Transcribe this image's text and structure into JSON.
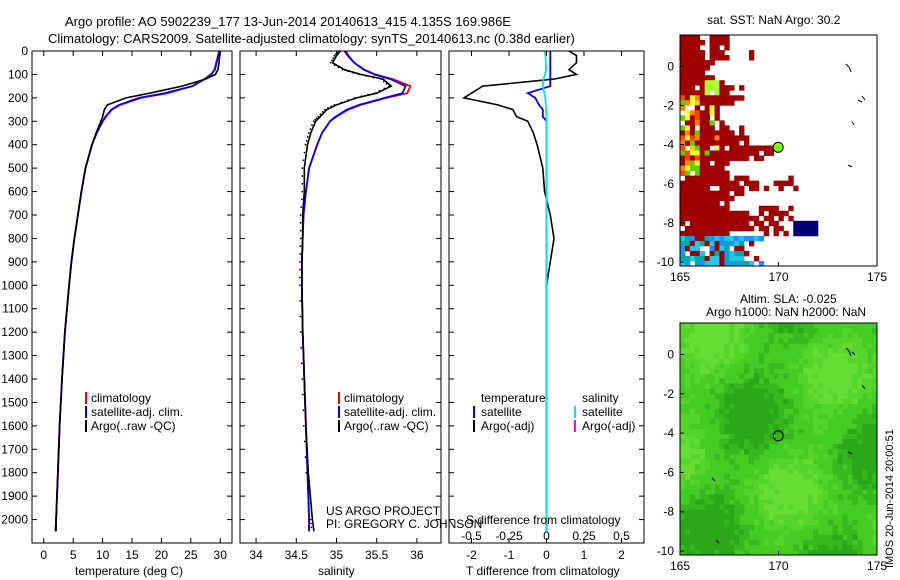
{
  "header": {
    "line1": "Argo profile: AO 5902239_177 13-Jun-2014 20140613_415 4.135S 169.986E",
    "line2": "Climatology: CARS2009. Satellite-adjusted climatology: synTS_20140613.nc (0.38d earlier)"
  },
  "credits": {
    "line1": "US ARGO PROJECT",
    "line2": "PI: GREGORY C. JOHNSON"
  },
  "stamp": "IMOS 20-Jun-2014 20:00:51",
  "colors": {
    "climatology": "#ff0000",
    "satellite": "#0000ff",
    "argo": "#000000",
    "salinity_sat": "#00e5ee",
    "salinity_argo": "#ff00ff"
  },
  "chart_data": [
    {
      "type": "line",
      "name": "temperature",
      "xlabel": "temperature (deg C)",
      "xlim": [
        -2,
        32
      ],
      "xticks": [
        0,
        5,
        10,
        15,
        20,
        25,
        30
      ],
      "ylim": [
        0,
        2100
      ],
      "yticks": [
        0,
        100,
        200,
        300,
        400,
        500,
        600,
        700,
        800,
        900,
        1000,
        1100,
        1200,
        1300,
        1400,
        1500,
        1600,
        1700,
        1800,
        1900,
        2000
      ],
      "legend": [
        "climatology",
        "satellite-adj. clim.",
        "Argo(..raw -QC)"
      ],
      "depth": [
        0,
        20,
        50,
        80,
        100,
        120,
        150,
        180,
        200,
        230,
        250,
        280,
        300,
        350,
        400,
        500,
        600,
        700,
        800,
        900,
        1000,
        1200,
        1400,
        1600,
        1800,
        2000,
        2050
      ],
      "series": [
        {
          "name": "climatology",
          "color": "#ff0000",
          "values": [
            29.8,
            29.6,
            29.3,
            29.0,
            28.4,
            27.3,
            25.2,
            21.0,
            16.5,
            13.0,
            11.6,
            10.6,
            10.0,
            9.0,
            8.2,
            7.1,
            6.4,
            5.8,
            5.2,
            4.7,
            4.3,
            3.6,
            3.1,
            2.7,
            2.4,
            2.1,
            2.0
          ]
        },
        {
          "name": "satellite-adj. clim.",
          "color": "#0000ff",
          "values": [
            29.9,
            29.7,
            29.4,
            29.1,
            28.5,
            27.4,
            25.3,
            20.5,
            16.2,
            12.8,
            11.5,
            10.5,
            10.0,
            9.0,
            8.2,
            7.1,
            6.4,
            5.8,
            5.2,
            4.7,
            4.3,
            3.6,
            3.1,
            2.7,
            2.4,
            2.1,
            2.0
          ]
        },
        {
          "name": "Argo",
          "color": "#000000",
          "values": [
            30.0,
            29.9,
            29.8,
            29.6,
            29.2,
            27.5,
            23.5,
            18.0,
            14.0,
            10.8,
            10.3,
            10.0,
            9.7,
            8.9,
            8.2,
            7.1,
            6.4,
            5.8,
            5.2,
            4.7,
            4.3,
            3.6,
            3.1,
            2.7,
            2.4,
            2.1,
            2.1
          ]
        }
      ]
    },
    {
      "type": "line",
      "name": "salinity",
      "xlabel": "salinity",
      "xlim": [
        33.8,
        36.3
      ],
      "xticks": [
        34,
        34.5,
        35,
        35.5,
        36
      ],
      "ylim": [
        0,
        2100
      ],
      "legend": [
        "climatology",
        "satellite-adj. clim.",
        "Argo(..raw -QC)"
      ],
      "depth": [
        0,
        20,
        50,
        80,
        100,
        120,
        150,
        180,
        200,
        230,
        250,
        280,
        300,
        350,
        400,
        500,
        600,
        700,
        800,
        900,
        1000,
        1200,
        1400,
        1600,
        1800,
        2000,
        2050
      ],
      "series": [
        {
          "name": "climatology",
          "color": "#ff0000",
          "values": [
            35.12,
            35.15,
            35.22,
            35.35,
            35.48,
            35.7,
            35.92,
            35.88,
            35.62,
            35.3,
            35.15,
            35.0,
            34.92,
            34.82,
            34.76,
            34.66,
            34.62,
            34.59,
            34.58,
            34.57,
            34.57,
            34.58,
            34.6,
            34.62,
            34.64,
            34.66,
            34.66
          ]
        },
        {
          "name": "satellite-adj. clim.",
          "color": "#0000ff",
          "values": [
            35.1,
            35.14,
            35.22,
            35.34,
            35.47,
            35.67,
            35.86,
            35.82,
            35.6,
            35.28,
            35.13,
            34.99,
            34.92,
            34.82,
            34.76,
            34.66,
            34.62,
            34.59,
            34.58,
            34.57,
            34.57,
            34.58,
            34.6,
            34.62,
            34.64,
            34.66,
            34.66
          ]
        },
        {
          "name": "Argo",
          "color": "#000000",
          "values": [
            35.05,
            35.0,
            34.95,
            35.1,
            35.3,
            35.58,
            35.68,
            35.5,
            35.25,
            35.0,
            34.88,
            34.8,
            34.74,
            34.68,
            34.64,
            34.6,
            34.6,
            34.58,
            34.58,
            34.57,
            34.57,
            34.58,
            34.6,
            34.62,
            34.65,
            34.7,
            34.72
          ]
        }
      ]
    },
    {
      "type": "line",
      "name": "difference",
      "xlabel": "T difference from climatology",
      "xlabel2": "S difference from climatology",
      "xlim": [
        -2.6,
        2.6
      ],
      "xticks": [
        -2,
        -1,
        0,
        1,
        2
      ],
      "xticks_s": [
        -0.5,
        -0.25,
        0,
        0.25,
        0.5
      ],
      "ylim": [
        0,
        2100
      ],
      "legend_head_t": "temperature",
      "legend_head_s": "salinity",
      "legend_t": [
        "satellite",
        "Argo(-adj)"
      ],
      "legend_s": [
        "satellite",
        "Argo(-adj)"
      ],
      "depth": [
        0,
        20,
        50,
        80,
        100,
        120,
        150,
        180,
        200,
        230,
        250,
        280,
        300,
        350,
        400,
        500,
        600,
        700,
        800,
        900,
        1000,
        1200,
        1400,
        1600,
        1800,
        2000,
        2050
      ],
      "series": [
        {
          "name": "T satellite",
          "color": "#0000ff",
          "values": [
            0.1,
            0.1,
            0.1,
            0.1,
            0.1,
            0.1,
            0.1,
            -0.5,
            -0.3,
            -0.2,
            -0.1,
            -0.1,
            0,
            0,
            0,
            0,
            0,
            0,
            0,
            0,
            0,
            0,
            0,
            0,
            0,
            0,
            0
          ]
        },
        {
          "name": "T Argo",
          "color": "#000000",
          "values": [
            0.6,
            0.8,
            0.8,
            0.6,
            0.8,
            0.2,
            -1.7,
            -2.0,
            -2.2,
            -1.3,
            -0.9,
            -0.8,
            -0.5,
            -0.35,
            -0.25,
            -0.1,
            -0.05,
            0.1,
            0.2,
            0.1,
            0,
            0,
            0,
            0,
            0,
            0,
            0
          ]
        },
        {
          "name": "S satellite",
          "color": "#00e5ee",
          "values": [
            -0.05,
            -0.03,
            -0.02,
            -0.01,
            -0.04,
            -0.08,
            -0.1,
            -0.06,
            -0.03,
            -0.02,
            -0.01,
            0,
            0,
            0,
            0,
            0,
            0,
            0,
            0,
            0,
            0,
            0,
            0,
            0,
            0,
            0,
            0
          ]
        }
      ]
    },
    {
      "type": "heatmap",
      "name": "sst_map",
      "title": "sat. SST: NaN Argo: 30.2",
      "xticks": [
        165,
        170,
        175
      ],
      "yticks": [
        0,
        -2,
        -4,
        -6,
        -8,
        -10
      ],
      "xlim": [
        165,
        175
      ],
      "ylim": [
        -10.2,
        1.6
      ],
      "argo_position": [
        169.986,
        -4.135
      ]
    },
    {
      "type": "heatmap",
      "name": "sla_map",
      "title1": "Altim. SLA: -0.025",
      "title2": "Argo h1000: NaN h2000: NaN",
      "xticks": [
        165,
        170,
        175
      ],
      "yticks": [
        0,
        -2,
        -4,
        -6,
        -8,
        -10
      ],
      "xlim": [
        165,
        175
      ],
      "ylim": [
        -10.2,
        1.6
      ],
      "argo_position": [
        169.986,
        -4.135
      ]
    }
  ]
}
